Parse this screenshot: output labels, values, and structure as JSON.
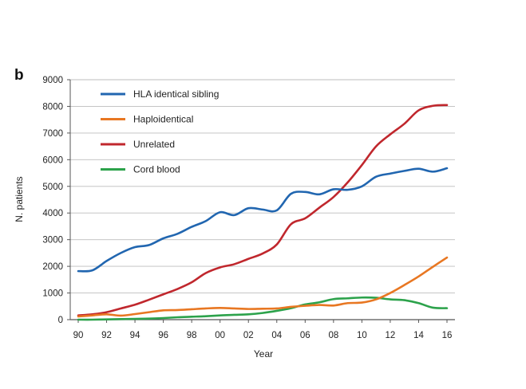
{
  "panel_label": "b",
  "chart_data": {
    "type": "line",
    "title": "",
    "xlabel": "Year",
    "ylabel": "N. patients",
    "xlim": [
      1990,
      2016
    ],
    "ylim": [
      0,
      9000
    ],
    "yticks": [
      0,
      1000,
      2000,
      3000,
      4000,
      5000,
      6000,
      7000,
      8000,
      9000
    ],
    "xticks": [
      1990,
      1992,
      1994,
      1996,
      1998,
      2000,
      2002,
      2004,
      2006,
      2008,
      2010,
      2012,
      2014,
      2016
    ],
    "xtick_labels": [
      "90",
      "92",
      "94",
      "96",
      "98",
      "00",
      "02",
      "04",
      "06",
      "08",
      "10",
      "12",
      "14",
      "16"
    ],
    "grid": "horizontal",
    "legend_position": "top-left",
    "x": [
      1990,
      1991,
      1992,
      1993,
      1994,
      1995,
      1996,
      1997,
      1998,
      1999,
      2000,
      2001,
      2002,
      2003,
      2004,
      2005,
      2006,
      2007,
      2008,
      2009,
      2010,
      2011,
      2012,
      2013,
      2014,
      2015,
      2016
    ],
    "series": [
      {
        "name": "HLA identical sibling",
        "color": "#2166b0",
        "values": [
          1820,
          1850,
          2200,
          2500,
          2720,
          2800,
          3050,
          3220,
          3480,
          3700,
          4030,
          3920,
          4180,
          4130,
          4100,
          4720,
          4790,
          4700,
          4890,
          4870,
          5000,
          5360,
          5480,
          5580,
          5660,
          5550,
          5680
        ]
      },
      {
        "name": "Haploidentical",
        "color": "#e87722",
        "values": [
          120,
          160,
          200,
          150,
          210,
          280,
          350,
          360,
          390,
          420,
          440,
          420,
          400,
          410,
          420,
          480,
          520,
          550,
          530,
          620,
          640,
          760,
          1000,
          1300,
          1620,
          1980,
          2330
        ]
      },
      {
        "name": "Unrelated",
        "color": "#c0272d",
        "values": [
          160,
          200,
          280,
          420,
          560,
          750,
          950,
          1150,
          1400,
          1750,
          1960,
          2080,
          2280,
          2480,
          2820,
          3580,
          3800,
          4200,
          4600,
          5150,
          5800,
          6500,
          6950,
          7350,
          7850,
          8020,
          8050
        ]
      },
      {
        "name": "Cord blood",
        "color": "#2ca24b",
        "values": [
          0,
          0,
          10,
          20,
          30,
          40,
          60,
          90,
          110,
          130,
          160,
          180,
          200,
          250,
          330,
          430,
          570,
          650,
          770,
          800,
          830,
          820,
          760,
          730,
          620,
          450,
          430
        ]
      }
    ]
  }
}
